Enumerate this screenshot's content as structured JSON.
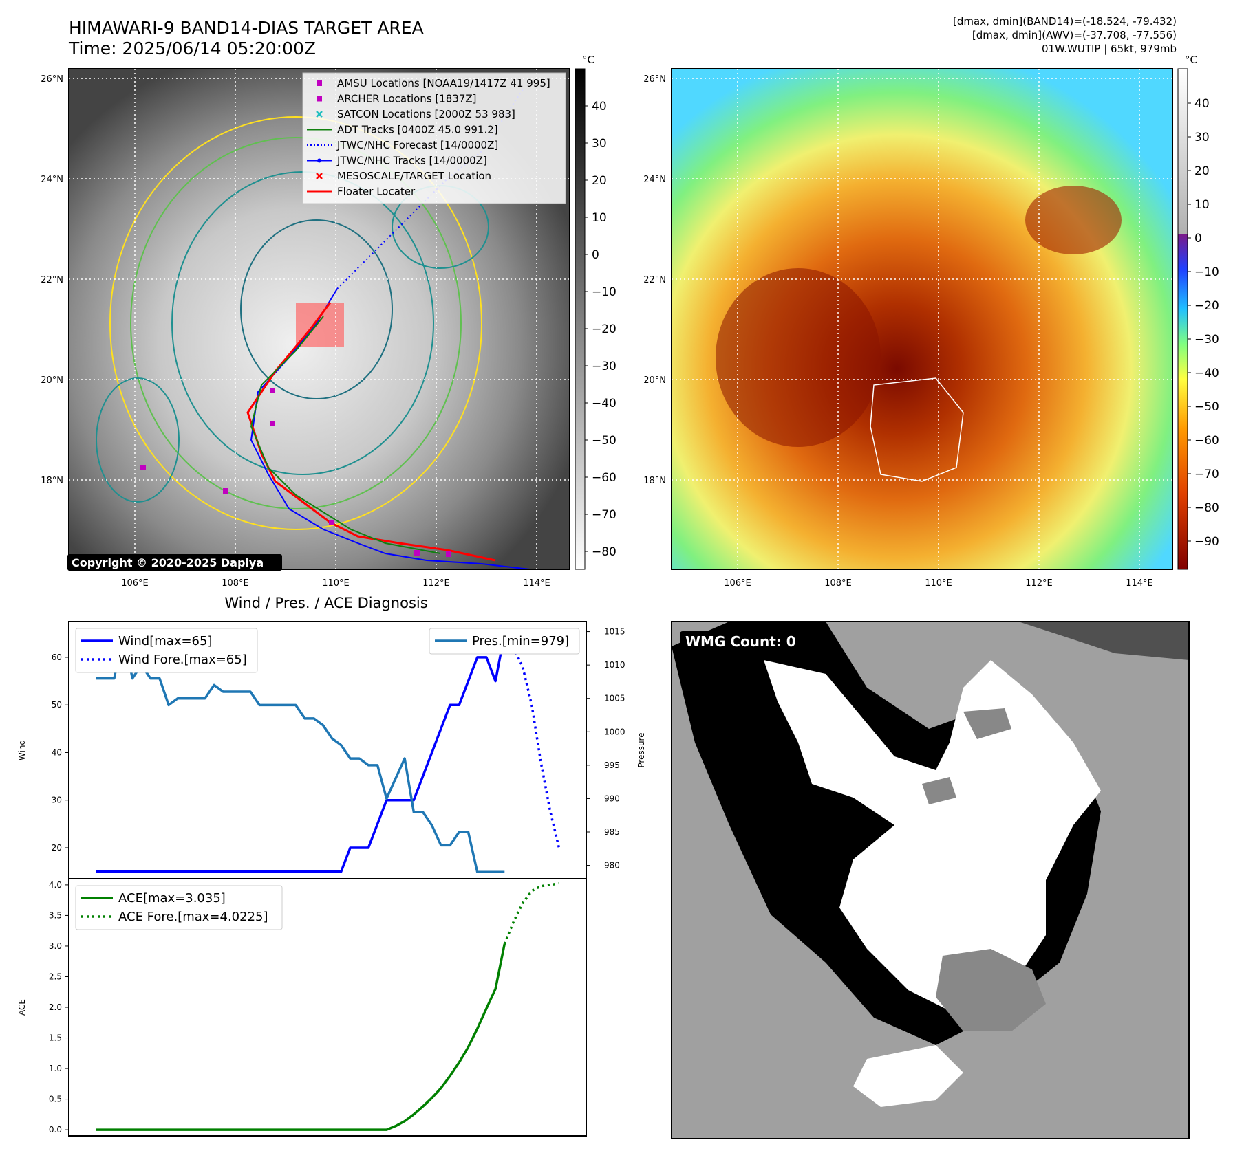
{
  "header_left": {
    "title": "HIMAWARI-9 BAND14-DIAS TARGET AREA",
    "time": "Time: 2025/06/14 05:20:00Z"
  },
  "header_right": {
    "line1": "[dmax, dmin](BAND14)=(-18.524, -79.432)",
    "line2": "[dmax, dmin](AWV)=(-37.708, -77.556)",
    "line3": "01W.WUTIP | 65kt, 979mb"
  },
  "map_axes": {
    "lon_labels": [
      "106°E",
      "108°E",
      "110°E",
      "112°E",
      "114°E"
    ],
    "lat_labels": [
      "26°N",
      "24°N",
      "22°N",
      "20°N",
      "18°N"
    ]
  },
  "colorbar_gray": {
    "unit": "°C",
    "ticks": [
      "40",
      "30",
      "20",
      "10",
      "0",
      "−10",
      "−20",
      "−30",
      "−40",
      "−50",
      "−60",
      "−70",
      "−80"
    ]
  },
  "colorbar_color": {
    "unit": "°C",
    "ticks": [
      "40",
      "30",
      "20",
      "10",
      "0",
      "−10",
      "−20",
      "−30",
      "−40",
      "−50",
      "−60",
      "−70",
      "−80",
      "−90"
    ]
  },
  "legend_map": [
    {
      "label": "AMSU Locations [NOAA19/1417Z 41 995]",
      "color": "#c000c0",
      "marker": "square"
    },
    {
      "label": "ARCHER Locations [1837Z]",
      "color": "#c000c0",
      "marker": "square"
    },
    {
      "label": "SATCON Locations [2000Z 53 983]",
      "color": "#1fbfbf",
      "marker": "x"
    },
    {
      "label": "ADT Tracks [0400Z 45.0 991.2]",
      "color": "#108010",
      "marker": "line"
    },
    {
      "label": "JTWC/NHC Forecast [14/0000Z]",
      "color": "#0000ff",
      "marker": "dotted"
    },
    {
      "label": "JTWC/NHC Tracks [14/0000Z]",
      "color": "#0000ff",
      "marker": "line-dot"
    },
    {
      "label": "MESOSCALE/TARGET Location",
      "color": "#ff0000",
      "marker": "x"
    },
    {
      "label": "Floater Locater",
      "color": "#ff0000",
      "marker": "line"
    }
  ],
  "copyright": "Copyright © 2020-2025 Dapiya",
  "wmg_label": "WMG Count: 0",
  "chart_data": [
    {
      "type": "line",
      "title": "Wind / Pres. / ACE Diagnosis",
      "ylabel": "Wind",
      "ylabel_right": "Pressure",
      "ylim": [
        13.5,
        67.5
      ],
      "ylim_right": [
        978,
        1016.5
      ],
      "yticks": [
        20,
        30,
        40,
        50,
        60
      ],
      "yticks_right": [
        980,
        985,
        990,
        995,
        1000,
        1005,
        1010,
        1015
      ],
      "series": [
        {
          "name": "Wind[max=65]",
          "color": "#0000ff",
          "style": "solid",
          "axis": "left",
          "x": [
            0,
            1,
            2,
            3,
            4,
            5,
            6,
            7,
            8,
            9,
            10,
            11,
            12,
            13,
            14,
            15,
            16,
            17,
            18,
            19,
            20,
            21,
            22,
            23,
            24,
            25,
            26,
            27,
            28,
            29,
            30,
            31,
            32,
            33,
            34,
            35,
            36,
            37,
            38,
            39,
            40,
            41,
            42,
            43,
            44,
            45
          ],
          "values": [
            15,
            15,
            15,
            15,
            15,
            15,
            15,
            15,
            15,
            15,
            15,
            15,
            15,
            15,
            15,
            15,
            15,
            15,
            15,
            15,
            15,
            15,
            15,
            15,
            15,
            15,
            15,
            15,
            20,
            20,
            20,
            25,
            30,
            30,
            30,
            30,
            35,
            40,
            45,
            50,
            50,
            55,
            60,
            60,
            55,
            65
          ]
        },
        {
          "name": "Wind Fore.[max=65]",
          "color": "#0000ff",
          "style": "dotted",
          "axis": "left",
          "x": [
            45,
            46,
            47,
            48,
            49,
            50,
            51
          ],
          "values": [
            65,
            62,
            58,
            50,
            38,
            28,
            20
          ]
        },
        {
          "name": "Pres.[min=979]",
          "color": "#1f77b4",
          "style": "solid",
          "axis": "right",
          "x": [
            0,
            1,
            2,
            3,
            4,
            5,
            6,
            7,
            8,
            9,
            10,
            11,
            12,
            13,
            14,
            15,
            16,
            17,
            18,
            19,
            20,
            21,
            22,
            23,
            24,
            25,
            26,
            27,
            28,
            29,
            30,
            31,
            32,
            33,
            34,
            35,
            36,
            37,
            38,
            39,
            40,
            41,
            42,
            43,
            44,
            45
          ],
          "values": [
            1008,
            1008,
            1008,
            1015,
            1008,
            1010,
            1008,
            1008,
            1004,
            1005,
            1005,
            1005,
            1005,
            1007,
            1006,
            1006,
            1006,
            1006,
            1004,
            1004,
            1004,
            1004,
            1004,
            1002,
            1002,
            1001,
            999,
            998,
            996,
            996,
            995,
            995,
            990,
            993,
            996,
            988,
            988,
            986,
            983,
            983,
            985,
            985,
            979,
            979,
            979,
            979
          ]
        }
      ]
    },
    {
      "type": "line",
      "ylabel": "ACE",
      "ylim": [
        -0.1,
        4.1
      ],
      "yticks": [
        0.0,
        0.5,
        1.0,
        1.5,
        2.0,
        2.5,
        3.0,
        3.5,
        4.0
      ],
      "series": [
        {
          "name": "ACE[max=3.035]",
          "color": "#008000",
          "style": "solid",
          "x": [
            0,
            10,
            20,
            30,
            32,
            33,
            34,
            35,
            36,
            37,
            38,
            39,
            40,
            41,
            42,
            43,
            44,
            45
          ],
          "values": [
            0,
            0,
            0,
            0,
            0,
            0.06,
            0.14,
            0.25,
            0.38,
            0.52,
            0.68,
            0.88,
            1.1,
            1.35,
            1.65,
            1.98,
            2.3,
            3.035
          ]
        },
        {
          "name": "ACE Fore.[max=4.0225]",
          "color": "#008000",
          "style": "dotted",
          "x": [
            45,
            46,
            47,
            48,
            49,
            50,
            51
          ],
          "values": [
            3.035,
            3.4,
            3.7,
            3.9,
            3.98,
            4.0,
            4.0225
          ]
        }
      ]
    }
  ]
}
